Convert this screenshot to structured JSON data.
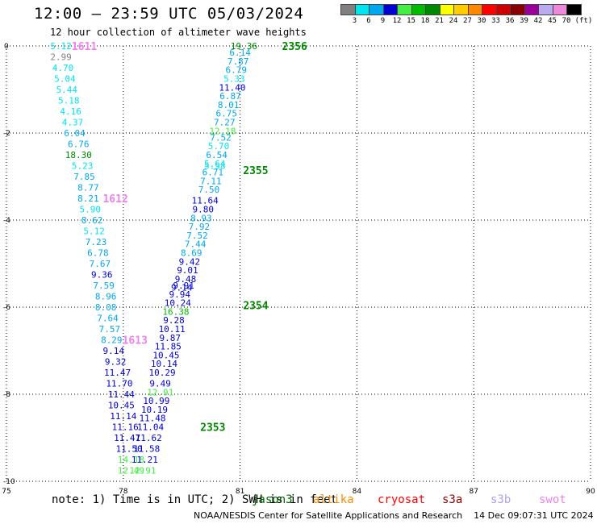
{
  "header": {
    "title": "12:00 – 23:59 UTC 05/03/2024",
    "subtitle": "12 hour collection of altimeter wave heights"
  },
  "legend": {
    "unit": "(ft)",
    "bins": [
      {
        "label": "3",
        "color": "#808080"
      },
      {
        "label": "6",
        "color": "#00e5ee"
      },
      {
        "label": "9",
        "color": "#00a8f0"
      },
      {
        "label": "12",
        "color": "#0000d0"
      },
      {
        "label": "15",
        "color": "#44ee44"
      },
      {
        "label": "18",
        "color": "#00bb00"
      },
      {
        "label": "21",
        "color": "#008800"
      },
      {
        "label": "24",
        "color": "#ffff00"
      },
      {
        "label": "27",
        "color": "#ffcc00"
      },
      {
        "label": "30",
        "color": "#ff8800"
      },
      {
        "label": "33",
        "color": "#ff0000"
      },
      {
        "label": "36",
        "color": "#cc0000"
      },
      {
        "label": "39",
        "color": "#880000"
      },
      {
        "label": "42",
        "color": "#990099"
      },
      {
        "label": "45",
        "color": "#bbaaee"
      },
      {
        "label": "70",
        "color": "#ee88dd"
      },
      {
        "label": "",
        "color": "#000000"
      }
    ]
  },
  "note": {
    "text": "note: 1) Time is in UTC; 2) SWH is in feet",
    "satellites": [
      {
        "name": "jason3",
        "color": "#006600"
      },
      {
        "name": "altika",
        "color": "#ff8c00"
      },
      {
        "name": "cryosat",
        "color": "#ff0000"
      },
      {
        "name": "s3a",
        "color": "#8b0000"
      },
      {
        "name": "s3b",
        "color": "#b0a0f0"
      },
      {
        "name": "swot",
        "color": "#ee82ee"
      }
    ]
  },
  "footer": {
    "text": "NOAA/NESDIS Center for Satellite Applications and Research    14 Dec 09:07:31 UTC 2024"
  },
  "chart_data": {
    "type": "scatter",
    "x_axis": {
      "min": 75,
      "max": 90,
      "ticks": [
        75,
        78,
        81,
        84,
        87,
        90
      ]
    },
    "y_axis": {
      "min": -10,
      "max": 0,
      "ticks": [
        0,
        -2,
        -4,
        -6,
        -8,
        -10
      ]
    },
    "grid": "dotted",
    "tracks": [
      {
        "label": "1611",
        "label_x": 77.0,
        "label_y": 0.0,
        "label_color": "#ee82ee",
        "points": [
          {
            "x": 76.4,
            "y": 0.0,
            "v": "5.12"
          },
          {
            "x": 76.4,
            "y": -0.25,
            "v": "2.99"
          },
          {
            "x": 76.45,
            "y": -0.5,
            "v": "4.70"
          },
          {
            "x": 76.5,
            "y": -0.75,
            "v": "5.04"
          },
          {
            "x": 76.55,
            "y": -1.0,
            "v": "5.44"
          },
          {
            "x": 76.6,
            "y": -1.25,
            "v": "5.18"
          },
          {
            "x": 76.65,
            "y": -1.5,
            "v": "4.16"
          },
          {
            "x": 76.7,
            "y": -1.75,
            "v": "4.37"
          },
          {
            "x": 76.75,
            "y": -2.0,
            "v": "6.04"
          },
          {
            "x": 76.85,
            "y": -2.25,
            "v": "6.76"
          },
          {
            "x": 76.85,
            "y": -2.5,
            "v": "18.30"
          },
          {
            "x": 76.95,
            "y": -2.75,
            "v": "5.23"
          },
          {
            "x": 77.0,
            "y": -3.0,
            "v": "7.85"
          },
          {
            "x": 77.1,
            "y": -3.25,
            "v": "8.77"
          }
        ]
      },
      {
        "label": "1612",
        "label_x": 77.8,
        "label_y": -3.5,
        "label_color": "#ee82ee",
        "points": [
          {
            "x": 77.1,
            "y": -3.5,
            "v": "8.21"
          },
          {
            "x": 77.15,
            "y": -3.75,
            "v": "5.90"
          },
          {
            "x": 77.2,
            "y": -4.0,
            "v": "8.62"
          },
          {
            "x": 77.25,
            "y": -4.25,
            "v": "5.12"
          },
          {
            "x": 77.3,
            "y": -4.5,
            "v": "7.23"
          },
          {
            "x": 77.35,
            "y": -4.75,
            "v": "6.78"
          },
          {
            "x": 77.4,
            "y": -5.0,
            "v": "7.67"
          },
          {
            "x": 77.45,
            "y": -5.25,
            "v": "9.36"
          },
          {
            "x": 77.5,
            "y": -5.5,
            "v": "7.59"
          },
          {
            "x": 77.55,
            "y": -5.75,
            "v": "8.96"
          },
          {
            "x": 77.55,
            "y": -6.0,
            "v": "8.08"
          },
          {
            "x": 77.6,
            "y": -6.25,
            "v": "7.64"
          },
          {
            "x": 77.65,
            "y": -6.5,
            "v": "7.57"
          }
        ]
      },
      {
        "label": "1613",
        "label_x": 78.3,
        "label_y": -6.75,
        "label_color": "#ee82ee",
        "points": [
          {
            "x": 77.7,
            "y": -6.75,
            "v": "8.29"
          },
          {
            "x": 77.75,
            "y": -7.0,
            "v": "9.14"
          },
          {
            "x": 77.8,
            "y": -7.25,
            "v": "9.32"
          },
          {
            "x": 77.85,
            "y": -7.5,
            "v": "11.47"
          },
          {
            "x": 77.9,
            "y": -7.75,
            "v": "11.70"
          },
          {
            "x": 77.95,
            "y": -8.0,
            "v": "11.44"
          },
          {
            "x": 77.95,
            "y": -8.25,
            "v": "10.45"
          },
          {
            "x": 78.0,
            "y": -8.5,
            "v": "11.14"
          },
          {
            "x": 78.05,
            "y": -8.75,
            "v": "11.16"
          },
          {
            "x": 78.1,
            "y": -9.0,
            "v": "11.47"
          },
          {
            "x": 78.15,
            "y": -9.25,
            "v": "11.50"
          },
          {
            "x": 78.2,
            "y": -9.5,
            "v": "14.18"
          },
          {
            "x": 78.2,
            "y": -9.75,
            "v": "12.49"
          }
        ]
      },
      {
        "label": "2353",
        "label_x": 80.3,
        "label_y": -8.75,
        "label_color": "#008800",
        "points": [
          {
            "x": 78.5,
            "y": -9.75,
            "v": "12.91"
          },
          {
            "x": 78.55,
            "y": -9.5,
            "v": "11.21"
          },
          {
            "x": 78.6,
            "y": -9.25,
            "v": "11.58"
          },
          {
            "x": 78.65,
            "y": -9.0,
            "v": "11.62"
          },
          {
            "x": 78.7,
            "y": -8.75,
            "v": "11.04"
          },
          {
            "x": 78.75,
            "y": -8.55,
            "v": "11.48"
          },
          {
            "x": 78.8,
            "y": -8.35,
            "v": "10.19"
          },
          {
            "x": 78.85,
            "y": -8.15,
            "v": "10.99"
          },
          {
            "x": 78.95,
            "y": -7.95,
            "v": "12.91"
          },
          {
            "x": 78.95,
            "y": -7.75,
            "v": "9.49"
          },
          {
            "x": 79.0,
            "y": -7.5,
            "v": "10.29"
          },
          {
            "x": 79.05,
            "y": -7.3,
            "v": "10.14"
          },
          {
            "x": 79.1,
            "y": -7.1,
            "v": "10.45"
          },
          {
            "x": 79.15,
            "y": -6.9,
            "v": "11.85"
          },
          {
            "x": 79.2,
            "y": -6.7,
            "v": "9.87"
          },
          {
            "x": 79.25,
            "y": -6.5,
            "v": "10.11"
          },
          {
            "x": 79.3,
            "y": -6.3,
            "v": "9.28"
          }
        ]
      },
      {
        "label": "2354",
        "label_x": 81.4,
        "label_y": -5.95,
        "label_color": "#008800",
        "points": [
          {
            "x": 79.35,
            "y": -6.1,
            "v": "16.38"
          },
          {
            "x": 79.4,
            "y": -5.9,
            "v": "10.24"
          },
          {
            "x": 79.45,
            "y": -5.7,
            "v": "9.94"
          },
          {
            "x": 79.5,
            "y": -5.55,
            "v": "9.14"
          },
          {
            "x": 79.55,
            "y": -5.5,
            "v": "9.91"
          },
          {
            "x": 79.6,
            "y": -5.35,
            "v": "9.48"
          },
          {
            "x": 79.65,
            "y": -5.15,
            "v": "9.01"
          },
          {
            "x": 79.7,
            "y": -4.95,
            "v": "9.42"
          },
          {
            "x": 79.75,
            "y": -4.75,
            "v": "8.69"
          },
          {
            "x": 79.85,
            "y": -4.55,
            "v": "7.44"
          },
          {
            "x": 79.9,
            "y": -4.35,
            "v": "7.52"
          },
          {
            "x": 79.95,
            "y": -4.15,
            "v": "7.92"
          },
          {
            "x": 80.0,
            "y": -3.95,
            "v": "8.93"
          },
          {
            "x": 80.05,
            "y": -3.75,
            "v": "9.80"
          },
          {
            "x": 80.1,
            "y": -3.55,
            "v": "11.64"
          }
        ]
      },
      {
        "label": "2355",
        "label_x": 81.4,
        "label_y": -2.85,
        "label_color": "#008800",
        "points": [
          {
            "x": 80.2,
            "y": -3.3,
            "v": "7.50"
          },
          {
            "x": 80.25,
            "y": -3.1,
            "v": "7.11"
          },
          {
            "x": 80.3,
            "y": -2.9,
            "v": "6.71"
          },
          {
            "x": 80.35,
            "y": -2.75,
            "v": "5.58"
          },
          {
            "x": 80.35,
            "y": -2.7,
            "v": "5.64"
          },
          {
            "x": 80.4,
            "y": -2.5,
            "v": "6.54"
          },
          {
            "x": 80.45,
            "y": -2.3,
            "v": "5.70"
          },
          {
            "x": 80.5,
            "y": -2.1,
            "v": "7.52"
          },
          {
            "x": 80.55,
            "y": -1.95,
            "v": "12.18"
          },
          {
            "x": 80.6,
            "y": -1.75,
            "v": "7.27"
          },
          {
            "x": 80.65,
            "y": -1.55,
            "v": "6.75"
          },
          {
            "x": 80.7,
            "y": -1.35,
            "v": "8.01"
          },
          {
            "x": 80.75,
            "y": -1.15,
            "v": "6.87"
          },
          {
            "x": 80.8,
            "y": -0.95,
            "v": "11.40"
          },
          {
            "x": 80.85,
            "y": -0.75,
            "v": "5.33"
          },
          {
            "x": 80.9,
            "y": -0.55,
            "v": "6.79"
          },
          {
            "x": 80.95,
            "y": -0.35,
            "v": "7.87"
          },
          {
            "x": 81.0,
            "y": -0.15,
            "v": "6.14"
          }
        ]
      },
      {
        "label": "2356",
        "label_x": 82.4,
        "label_y": 0.0,
        "label_color": "#008800",
        "points": [
          {
            "x": 81.1,
            "y": 0.0,
            "v": "19.36"
          }
        ]
      }
    ]
  }
}
